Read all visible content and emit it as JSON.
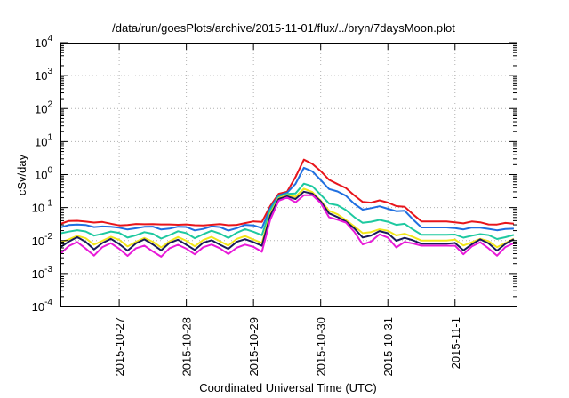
{
  "chart_data": {
    "type": "line",
    "title": "/data/run/goesPlots/archive/2015-11-01/flux/../bryn/7daysMoon.plot",
    "xlabel": "Coordinated Universal Time (UTC)",
    "ylabel": "cSv/day",
    "y_scale": "log",
    "ylim": [
      0.0001,
      10000
    ],
    "xlim": [
      "2015-10-26T03:00",
      "2015-11-01T22:00"
    ],
    "x_ticks": [
      "2015-10-27",
      "2015-10-28",
      "2015-10-29",
      "2015-10-30",
      "2015-10-31",
      "2015-11-1"
    ],
    "y_ticks": [
      {
        "base": "10",
        "exp": "-4"
      },
      {
        "base": "10",
        "exp": "-3"
      },
      {
        "base": "10",
        "exp": "-2"
      },
      {
        "base": "10",
        "exp": "-1"
      },
      {
        "base": "10",
        "exp": "0"
      },
      {
        "base": "10",
        "exp": "1"
      },
      {
        "base": "10",
        "exp": "2"
      },
      {
        "base": "10",
        "exp": "3"
      },
      {
        "base": "10",
        "exp": "4"
      }
    ],
    "grid": true,
    "legend": "none",
    "series": [
      {
        "color": "#e8151b",
        "x": [
          "2015-10-26T03:00",
          "2015-10-26T12:00",
          "2015-10-27T00:00",
          "2015-10-27T12:00",
          "2015-10-28T00:00",
          "2015-10-28T12:00",
          "2015-10-28T22:00",
          "2015-10-29T03:00",
          "2015-10-29T08:00",
          "2015-10-29T12:00",
          "2015-10-29T18:00",
          "2015-10-29T23:00",
          "2015-10-30T04:00",
          "2015-10-30T08:00",
          "2015-10-30T13:00",
          "2015-10-30T18:00",
          "2015-10-30T23:00",
          "2015-10-31T05:00",
          "2015-10-31T12:00",
          "2015-11-01T00:00",
          "2015-11-01T12:00",
          "2015-11-01T22:00"
        ],
        "y": [
          0.035,
          0.04,
          0.03,
          0.032,
          0.03,
          0.03,
          0.033,
          0.04,
          0.25,
          0.3,
          3.0,
          1.4,
          0.7,
          0.4,
          0.2,
          0.14,
          0.15,
          0.12,
          0.038,
          0.038,
          0.033,
          0.032
        ]
      },
      {
        "color": "#1f6fe0",
        "x": [
          "2015-10-26T03:00",
          "2015-10-26T12:00",
          "2015-10-27T00:00",
          "2015-10-27T12:00",
          "2015-10-28T00:00",
          "2015-10-28T12:00",
          "2015-10-28T22:00",
          "2015-10-29T03:00",
          "2015-10-29T08:00",
          "2015-10-29T12:00",
          "2015-10-29T18:00",
          "2015-10-29T23:00",
          "2015-10-30T04:00",
          "2015-10-30T08:00",
          "2015-10-30T13:00",
          "2015-10-30T18:00",
          "2015-10-30T23:00",
          "2015-10-31T05:00",
          "2015-10-31T12:00",
          "2015-11-01T00:00",
          "2015-11-01T12:00",
          "2015-11-01T22:00"
        ],
        "y": [
          0.028,
          0.03,
          0.024,
          0.025,
          0.024,
          0.024,
          0.026,
          0.03,
          0.22,
          0.28,
          1.6,
          0.8,
          0.4,
          0.22,
          0.12,
          0.09,
          0.1,
          0.09,
          0.025,
          0.025,
          0.023,
          0.022
        ]
      },
      {
        "color": "#1ec9a0",
        "x": [
          "2015-10-26T03:00",
          "2015-10-26T12:00",
          "2015-10-27T00:00",
          "2015-10-27T12:00",
          "2015-10-28T00:00",
          "2015-10-28T12:00",
          "2015-10-28T22:00",
          "2015-10-29T03:00",
          "2015-10-29T08:00",
          "2015-10-29T12:00",
          "2015-10-29T18:00",
          "2015-10-29T23:00",
          "2015-10-30T04:00",
          "2015-10-30T08:00",
          "2015-10-30T13:00",
          "2015-10-30T18:00",
          "2015-10-30T23:00",
          "2015-10-31T05:00",
          "2015-10-31T12:00",
          "2015-11-01T00:00",
          "2015-11-01T12:00",
          "2015-11-01T22:00"
        ],
        "y": [
          0.02,
          0.018,
          0.016,
          0.015,
          0.016,
          0.016,
          0.018,
          0.02,
          0.2,
          0.26,
          0.5,
          0.3,
          0.15,
          0.08,
          0.05,
          0.035,
          0.04,
          0.035,
          0.015,
          0.015,
          0.014,
          0.013
        ]
      },
      {
        "color": "#f2e61a",
        "x": [
          "2015-10-26T03:00",
          "2015-10-26T12:00",
          "2015-10-27T00:00",
          "2015-10-27T12:00",
          "2015-10-28T00:00",
          "2015-10-28T12:00",
          "2015-10-28T22:00",
          "2015-10-29T03:00",
          "2015-10-29T08:00",
          "2015-10-29T12:00",
          "2015-10-29T18:00",
          "2015-10-29T23:00",
          "2015-10-30T04:00",
          "2015-10-30T08:00",
          "2015-10-30T13:00",
          "2015-10-30T18:00",
          "2015-10-30T23:00",
          "2015-10-31T05:00",
          "2015-10-31T12:00",
          "2015-11-01T00:00",
          "2015-11-01T12:00",
          "2015-11-01T22:00"
        ],
        "y": [
          0.012,
          0.011,
          0.01,
          0.009,
          0.01,
          0.01,
          0.011,
          0.012,
          0.18,
          0.24,
          0.35,
          0.2,
          0.09,
          0.04,
          0.025,
          0.018,
          0.02,
          0.018,
          0.01,
          0.01,
          0.009,
          0.009
        ]
      },
      {
        "color": "#1a1a5a",
        "x": [
          "2015-10-26T03:00",
          "2015-10-26T12:00",
          "2015-10-27T00:00",
          "2015-10-27T12:00",
          "2015-10-28T00:00",
          "2015-10-28T12:00",
          "2015-10-28T22:00",
          "2015-10-29T03:00",
          "2015-10-29T08:00",
          "2015-10-29T12:00",
          "2015-10-29T18:00",
          "2015-10-29T23:00",
          "2015-10-30T04:00",
          "2015-10-30T08:00",
          "2015-10-30T13:00",
          "2015-10-30T18:00",
          "2015-10-30T23:00",
          "2015-10-31T05:00",
          "2015-10-31T12:00",
          "2015-11-01T00:00",
          "2015-11-01T12:00",
          "2015-11-01T22:00"
        ],
        "y": [
          0.01,
          0.009,
          0.008,
          0.008,
          0.008,
          0.008,
          0.009,
          0.01,
          0.17,
          0.22,
          0.3,
          0.18,
          0.08,
          0.035,
          0.02,
          0.015,
          0.016,
          0.014,
          0.008,
          0.008,
          0.008,
          0.008
        ]
      },
      {
        "color": "#e81ad8",
        "x": [
          "2015-10-26T03:00",
          "2015-10-26T12:00",
          "2015-10-27T00:00",
          "2015-10-27T12:00",
          "2015-10-28T00:00",
          "2015-10-28T12:00",
          "2015-10-28T22:00",
          "2015-10-29T03:00",
          "2015-10-29T08:00",
          "2015-10-29T12:00",
          "2015-10-29T18:00",
          "2015-10-29T23:00",
          "2015-10-30T04:00",
          "2015-10-30T08:00",
          "2015-10-30T13:00",
          "2015-10-30T18:00",
          "2015-10-30T23:00",
          "2015-10-31T05:00",
          "2015-10-31T12:00",
          "2015-11-01T00:00",
          "2015-11-01T12:00",
          "2015-11-01T22:00"
        ],
        "y": [
          0.007,
          0.006,
          0.006,
          0.005,
          0.006,
          0.006,
          0.006,
          0.007,
          0.15,
          0.2,
          0.25,
          0.15,
          0.07,
          0.03,
          0.015,
          0.01,
          0.012,
          0.01,
          0.007,
          0.007,
          0.006,
          0.006
        ]
      }
    ]
  }
}
